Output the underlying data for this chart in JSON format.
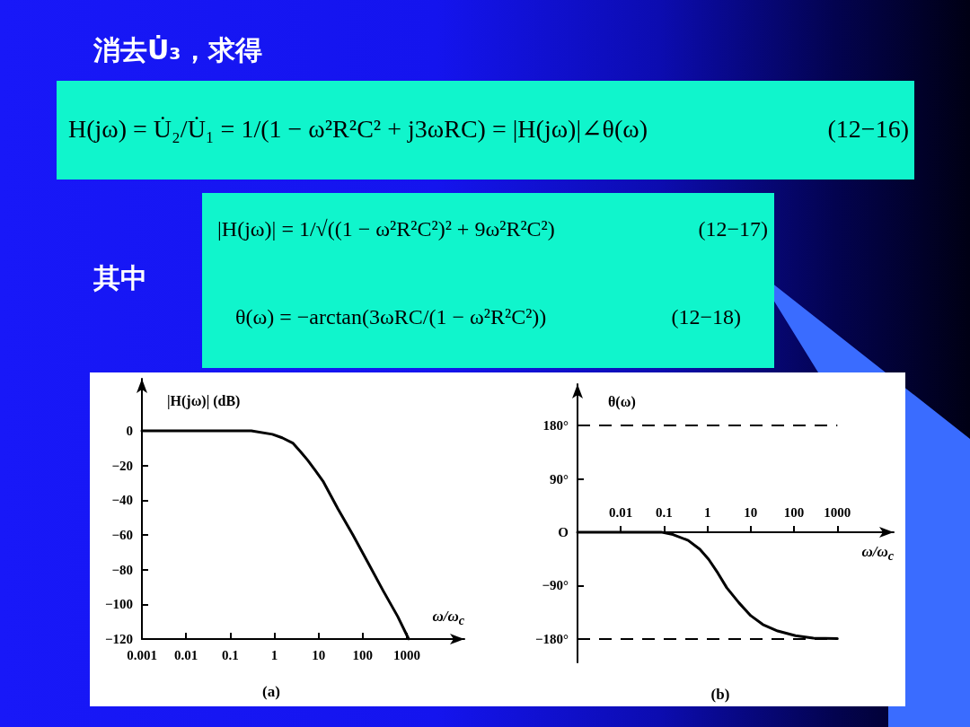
{
  "chart_data": [
    {
      "type": "other",
      "title": "消去U̇₃，求得",
      "annotations": [
        "H(jω) = U̇₂/U̇₁ = 1/(1 − ω²R²C² + j3ωRC) = |H(jω)|∠θ(ω)",
        "(12−16)",
        "其中",
        "|H(jω)| = 1/√((1 − ω²R²C²)² + 9ω²R²C²)",
        "(12−17)",
        "θ(ω) = −arctan(3ωRC/(1 − ω²R²C²))",
        "(12−18)"
      ]
    },
    {
      "type": "line",
      "title": "(a)",
      "xlabel": "ω/ω$_{c}$",
      "ylabel": "|H(jω)| (dB)",
      "log": "x",
      "x": [
        0.001,
        0.01,
        0.1,
        0.3,
        0.9,
        1.5,
        2.6,
        3.9,
        5.7,
        8.5,
        12.6,
        27.5,
        60,
        132,
        288,
        620,
        1100
      ],
      "values": [
        0,
        0,
        0,
        0,
        -2,
        -4,
        -7,
        -12,
        -17,
        -23,
        -29,
        -45,
        -60,
        -76,
        -92,
        -107,
        -120
      ],
      "color": "#000000",
      "xlim": [
        0.001,
        20000
      ],
      "xticks": [
        0.001,
        0.01,
        0.1,
        1,
        10,
        100,
        1000
      ],
      "ylim": [
        -120,
        30
      ],
      "yticks": [
        0,
        {
          "value": -20,
          "label": "−20"
        },
        {
          "value": -40,
          "label": "−40"
        },
        {
          "value": -60,
          "label": "−60"
        },
        {
          "value": -80,
          "label": "−80"
        },
        {
          "value": -100,
          "label": "−100"
        },
        {
          "value": -120,
          "label": "−120"
        }
      ],
      "marker": "none",
      "line_style": "solid"
    },
    {
      "type": "line",
      "title": "(b)",
      "xlabel": "ω/ω$_{c}$",
      "ylabel": "θ(ω)",
      "log": "x",
      "x": [
        0.001,
        0.085,
        0.16,
        0.36,
        0.67,
        1.07,
        1.74,
        2.8,
        5.3,
        10,
        19,
        42,
        108,
        280,
        1000
      ],
      "values": [
        0,
        0,
        -4,
        -14,
        -29,
        -46,
        -69,
        -94,
        -119,
        -141,
        -156,
        -167,
        -175,
        -179,
        -180
      ],
      "color": "#000000",
      "xlim": [
        0.001,
        20000
      ],
      "xticks": [
        0.01,
        0.1,
        1,
        10,
        100,
        1000
      ],
      "ylim": [
        -220,
        250
      ],
      "yticks": [
        {
          "value": 180,
          "label": "180°"
        },
        {
          "value": 90,
          "label": "90°"
        },
        {
          "value": 0,
          "label": "O"
        },
        {
          "value": -90,
          "label": "−90°"
        },
        {
          "value": -180,
          "label": "−180°"
        }
      ],
      "ref_lines": [
        {
          "axis": "y",
          "value": 180,
          "color": "#000000",
          "line_style": "dashed"
        },
        {
          "axis": "y",
          "value": -180,
          "color": "#000000",
          "line_style": "dashed"
        }
      ],
      "marker": "none",
      "line_style": "solid"
    }
  ]
}
